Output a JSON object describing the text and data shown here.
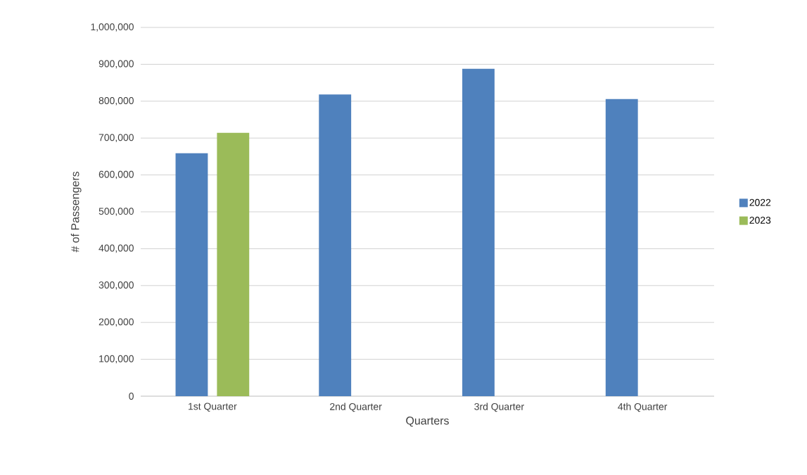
{
  "chart_data": {
    "type": "bar",
    "xlabel": "Quarters",
    "ylabel": "# of Passengers",
    "categories": [
      "1st Quarter",
      "2nd Quarter",
      "3rd Quarter",
      "4th Quarter"
    ],
    "series": [
      {
        "name": "2022",
        "color": "#4f81bd",
        "values": [
          659000,
          818000,
          888000,
          806000
        ]
      },
      {
        "name": "2023",
        "color": "#9bbb59",
        "values": [
          714000,
          null,
          null,
          null
        ]
      }
    ],
    "ylim": [
      0,
      1000000
    ],
    "yticks": [
      {
        "value": 0,
        "label": "0"
      },
      {
        "value": 100000,
        "label": "100,000"
      },
      {
        "value": 200000,
        "label": "200,000"
      },
      {
        "value": 300000,
        "label": "300,000"
      },
      {
        "value": 400000,
        "label": "400,000"
      },
      {
        "value": 500000,
        "label": "500,000"
      },
      {
        "value": 600000,
        "label": "600,000"
      },
      {
        "value": 700000,
        "label": "700,000"
      },
      {
        "value": 800000,
        "label": "800,000"
      },
      {
        "value": 900000,
        "label": "900,000"
      },
      {
        "value": 1000000,
        "label": "1,000,000"
      }
    ],
    "grid": "y",
    "legend": "right"
  }
}
